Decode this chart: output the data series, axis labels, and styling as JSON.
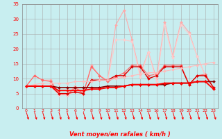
{
  "title": "",
  "xlabel": "Vent moyen/en rafales ( km/h )",
  "background_color": "#c8eef0",
  "grid_color": "#aaaaaa",
  "xlim": [
    -0.5,
    23.5
  ],
  "ylim": [
    0,
    35
  ],
  "yticks": [
    0,
    5,
    10,
    15,
    20,
    25,
    30,
    35
  ],
  "xticks": [
    0,
    1,
    2,
    3,
    4,
    5,
    6,
    7,
    8,
    9,
    10,
    11,
    12,
    13,
    14,
    15,
    16,
    17,
    18,
    19,
    20,
    21,
    22,
    23
  ],
  "series": [
    {
      "y": [
        7.5,
        11.0,
        9.5,
        9.5,
        5.0,
        4.5,
        7.5,
        5.0,
        14.5,
        11.0,
        9.5,
        28.0,
        33.0,
        23.0,
        11.5,
        19.0,
        10.0,
        29.0,
        17.5,
        29.0,
        25.5,
        17.5,
        11.0,
        7.0
      ],
      "color": "#ffaaaa",
      "lw": 0.8,
      "marker": "D",
      "ms": 2.0
    },
    {
      "y": [
        7.5,
        11.0,
        9.5,
        9.0,
        5.0,
        4.5,
        7.0,
        5.0,
        14.0,
        11.0,
        9.0,
        10.5,
        12.0,
        14.5,
        14.5,
        11.0,
        11.5,
        14.5,
        14.5,
        14.5,
        8.0,
        11.0,
        11.5,
        7.0
      ],
      "color": "#ff6666",
      "lw": 0.8,
      "marker": "D",
      "ms": 2.0
    },
    {
      "y": [
        7.5,
        7.5,
        7.5,
        7.5,
        4.5,
        4.5,
        5.5,
        5.0,
        9.5,
        9.5,
        9.5,
        23.0,
        23.0,
        22.5,
        10.5,
        19.0,
        9.0,
        28.0,
        17.0,
        28.0,
        25.0,
        17.5,
        11.0,
        7.0
      ],
      "color": "#ffcccc",
      "lw": 0.8,
      "marker": "D",
      "ms": 2.0
    },
    {
      "y": [
        7.5,
        7.5,
        7.5,
        7.5,
        5.0,
        5.0,
        5.5,
        5.0,
        9.5,
        9.5,
        9.5,
        11.0,
        11.0,
        14.0,
        14.0,
        10.0,
        11.0,
        14.0,
        14.0,
        14.0,
        8.0,
        11.0,
        11.0,
        7.0
      ],
      "color": "#dd0000",
      "lw": 1.0,
      "marker": "D",
      "ms": 2.0
    },
    {
      "y": [
        7.5,
        7.5,
        7.5,
        7.5,
        7.0,
        7.0,
        7.0,
        7.0,
        7.0,
        7.0,
        7.5,
        7.5,
        7.5,
        8.0,
        8.0,
        8.0,
        8.0,
        8.0,
        8.5,
        8.5,
        8.5,
        9.0,
        9.0,
        9.0
      ],
      "color": "#880000",
      "lw": 1.2,
      "marker": "D",
      "ms": 2.0
    },
    {
      "y": [
        7.5,
        8.0,
        8.5,
        8.5,
        8.5,
        8.5,
        9.0,
        9.0,
        9.0,
        9.5,
        9.5,
        10.0,
        10.5,
        11.0,
        11.5,
        12.0,
        12.0,
        12.5,
        13.0,
        13.5,
        14.0,
        14.5,
        15.0,
        15.5
      ],
      "color": "#ffbbbb",
      "lw": 0.8,
      "marker": "D",
      "ms": 2.0
    },
    {
      "y": [
        7.5,
        7.5,
        7.5,
        7.5,
        6.0,
        6.0,
        6.0,
        6.0,
        6.5,
        6.5,
        7.0,
        7.0,
        7.5,
        8.0,
        8.0,
        8.0,
        8.0,
        8.5,
        8.5,
        8.5,
        8.5,
        9.0,
        9.0,
        6.5
      ],
      "color": "#ff0000",
      "lw": 1.3,
      "marker": "D",
      "ms": 2.0
    }
  ],
  "arrow_color": "#ff0000",
  "text_color": "#ff0000"
}
